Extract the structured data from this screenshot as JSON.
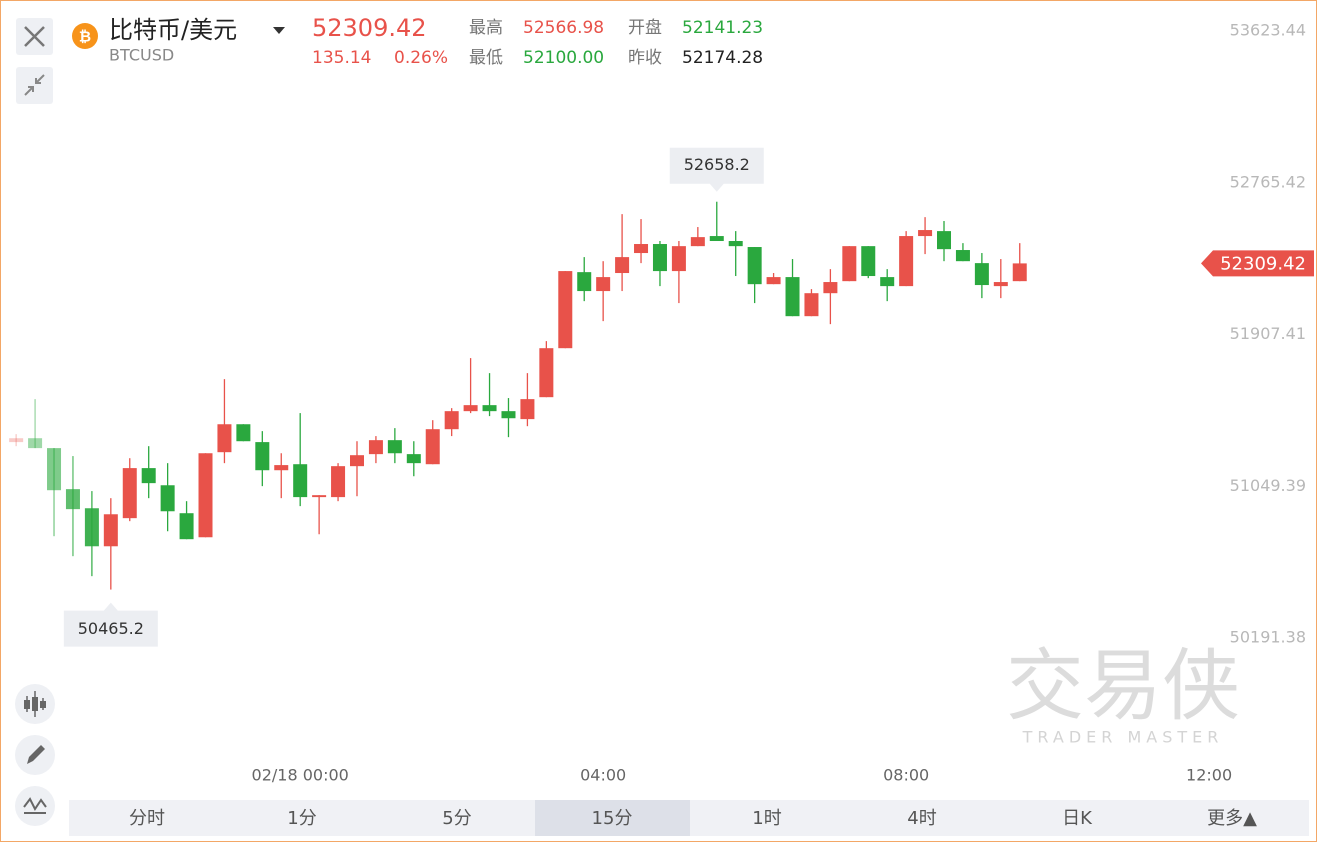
{
  "header": {
    "title": "比特币/美元",
    "symbol": "BTCUSD",
    "price": "52309.42",
    "change": "135.14",
    "change_pct": "0.26%",
    "high_label": "最高",
    "high": "52566.98",
    "open_label": "开盘",
    "open": "52141.23",
    "low_label": "最低",
    "low": "52100.00",
    "prev_close_label": "昨收",
    "prev_close": "52174.28"
  },
  "tabs": [
    "分时",
    "1分",
    "5分",
    "15分",
    "1时",
    "4时",
    "日K",
    "更多▲"
  ],
  "watermark": {
    "cn": "交易侠",
    "en": "TRADER MASTER"
  },
  "chart_data": {
    "type": "candlestick",
    "up_color": "#e8524a",
    "down_color": "#2aa83e",
    "ylim": [
      50191.38,
      53623.44
    ],
    "yticks": [
      53623.44,
      52765.42,
      51907.41,
      51049.39,
      50191.38
    ],
    "xlim": [
      -0.8,
      63.1
    ],
    "xticks": [
      {
        "value": 15,
        "label": "02/18 00:00"
      },
      {
        "value": 31,
        "label": "04:00"
      },
      {
        "value": 47,
        "label": "08:00"
      },
      {
        "value": 63,
        "label": "12:00"
      }
    ],
    "open": [
      51299,
      51321,
      51265,
      51033,
      50925,
      50710,
      50869,
      51152,
      51055,
      50897,
      50761,
      51242,
      51400,
      51299,
      51140,
      51174,
      50988,
      50988,
      51163,
      51231,
      51310,
      51231,
      51174,
      51372,
      51474,
      51508,
      51474,
      51429,
      51553,
      51830,
      52260,
      52153,
      52255,
      52368,
      52419,
      52266,
      52407,
      52464,
      52436,
      52402,
      52192,
      52232,
      52011,
      52141,
      52209,
      52407,
      52232,
      52181,
      52464,
      52492,
      52385,
      52311,
      52181,
      52209
    ],
    "high": [
      51344,
      51542,
      51265,
      51220,
      51022,
      50982,
      51208,
      51276,
      51180,
      50965,
      51236,
      51655,
      51400,
      51361,
      51236,
      51463,
      50999,
      51180,
      51304,
      51333,
      51378,
      51304,
      51423,
      51491,
      51774,
      51689,
      51548,
      51689,
      51870,
      52266,
      52345,
      52322,
      52588,
      52560,
      52436,
      52436,
      52515,
      52658.2,
      52492,
      52402,
      52255,
      52334,
      52164,
      52277,
      52407,
      52407,
      52277,
      52492,
      52571,
      52549,
      52424,
      52368,
      52334,
      52424
    ],
    "low": [
      51276,
      51265,
      50767,
      50654,
      50541,
      50465.2,
      50852,
      50982,
      50795,
      50750,
      50761,
      51180,
      51304,
      51050,
      50982,
      50937,
      50778,
      50965,
      50993,
      51180,
      51180,
      51106,
      51174,
      51333,
      51463,
      51446,
      51327,
      51389,
      51553,
      51830,
      52096,
      51983,
      52153,
      52311,
      52181,
      52085,
      52407,
      52436,
      52238,
      52085,
      52192,
      52011,
      52011,
      51966,
      52209,
      52226,
      52096,
      52181,
      52362,
      52322,
      52322,
      52113,
      52113,
      52209
    ],
    "close": [
      51321,
      51265,
      51027,
      50920,
      50710,
      50891,
      51152,
      51067,
      50908,
      50750,
      51236,
      51400,
      51304,
      51140,
      51169,
      50988,
      50999,
      51163,
      51225,
      51310,
      51236,
      51180,
      51372,
      51474,
      51508,
      51474,
      51434,
      51542,
      51830,
      52266,
      52153,
      52232,
      52345,
      52419,
      52266,
      52407,
      52458,
      52436,
      52407,
      52192,
      52232,
      52011,
      52141,
      52204,
      52407,
      52238,
      52181,
      52464,
      52498,
      52390,
      52322,
      52187,
      52204,
      52309.42
    ]
  }
}
